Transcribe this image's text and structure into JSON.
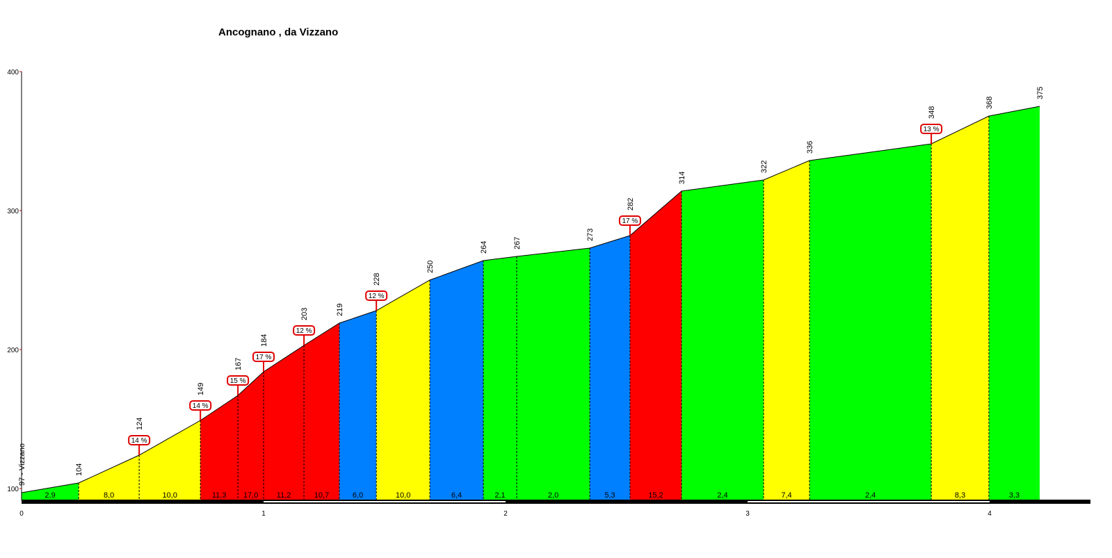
{
  "chart_data": {
    "type": "area",
    "title": "Ancognano , da Vizzano",
    "xlabel": "",
    "ylabel": "",
    "xlim": [
      0,
      4.4
    ],
    "ylim": [
      91.5,
      400
    ],
    "x_ticks": [
      0,
      1,
      2,
      3,
      4
    ],
    "y_ticks": [
      100,
      200,
      300,
      400
    ],
    "grid": false,
    "start_label": "97 - Vizzano",
    "points": [
      {
        "km": 0.0,
        "elev": 97
      },
      {
        "km": 0.236,
        "elev": 104
      },
      {
        "km": 0.486,
        "elev": 124
      },
      {
        "km": 0.739,
        "elev": 149
      },
      {
        "km": 0.894,
        "elev": 167
      },
      {
        "km": 1.0,
        "elev": 184
      },
      {
        "km": 1.167,
        "elev": 203
      },
      {
        "km": 1.313,
        "elev": 219
      },
      {
        "km": 1.466,
        "elev": 228
      },
      {
        "km": 1.687,
        "elev": 250
      },
      {
        "km": 1.908,
        "elev": 264
      },
      {
        "km": 2.046,
        "elev": 267
      },
      {
        "km": 2.348,
        "elev": 273
      },
      {
        "km": 2.514,
        "elev": 282
      },
      {
        "km": 2.727,
        "elev": 314
      },
      {
        "km": 3.066,
        "elev": 322
      },
      {
        "km": 3.256,
        "elev": 336
      },
      {
        "km": 3.759,
        "elev": 348
      },
      {
        "km": 3.997,
        "elev": 368
      },
      {
        "km": 4.207,
        "elev": 375
      }
    ],
    "segments": [
      {
        "gradient": "2,9",
        "color": "#00ff00"
      },
      {
        "gradient": "8,0",
        "color": "#ffff00"
      },
      {
        "gradient": "10,0",
        "color": "#ffff00"
      },
      {
        "gradient": "11,3",
        "color": "#ff0000"
      },
      {
        "gradient": "17,0",
        "color": "#ff0000"
      },
      {
        "gradient": "11,2",
        "color": "#ff0000"
      },
      {
        "gradient": "10,7",
        "color": "#ff0000"
      },
      {
        "gradient": "6,0",
        "color": "#0080ff"
      },
      {
        "gradient": "10,0",
        "color": "#ffff00"
      },
      {
        "gradient": "6,4",
        "color": "#0080ff"
      },
      {
        "gradient": "2,1",
        "color": "#00ff00"
      },
      {
        "gradient": "2,0",
        "color": "#00ff00"
      },
      {
        "gradient": "5,3",
        "color": "#0080ff"
      },
      {
        "gradient": "15,2",
        "color": "#ff0000"
      },
      {
        "gradient": "2,4",
        "color": "#00ff00"
      },
      {
        "gradient": "7,4",
        "color": "#ffff00"
      },
      {
        "gradient": "2,4",
        "color": "#00ff00"
      },
      {
        "gradient": "8,3",
        "color": "#ffff00"
      },
      {
        "gradient": "3,3",
        "color": "#00ff00"
      }
    ],
    "max_gradient_flags": [
      {
        "point": 2,
        "label": "14 %"
      },
      {
        "point": 3,
        "label": "14 %"
      },
      {
        "point": 4,
        "label": "15 %"
      },
      {
        "point": 5,
        "label": "17 %"
      },
      {
        "point": 6,
        "label": "12 %"
      },
      {
        "point": 8,
        "label": "12 %"
      },
      {
        "point": 13,
        "label": "17 %"
      },
      {
        "point": 17,
        "label": "13 %"
      }
    ],
    "flag_color": "#e00000"
  }
}
